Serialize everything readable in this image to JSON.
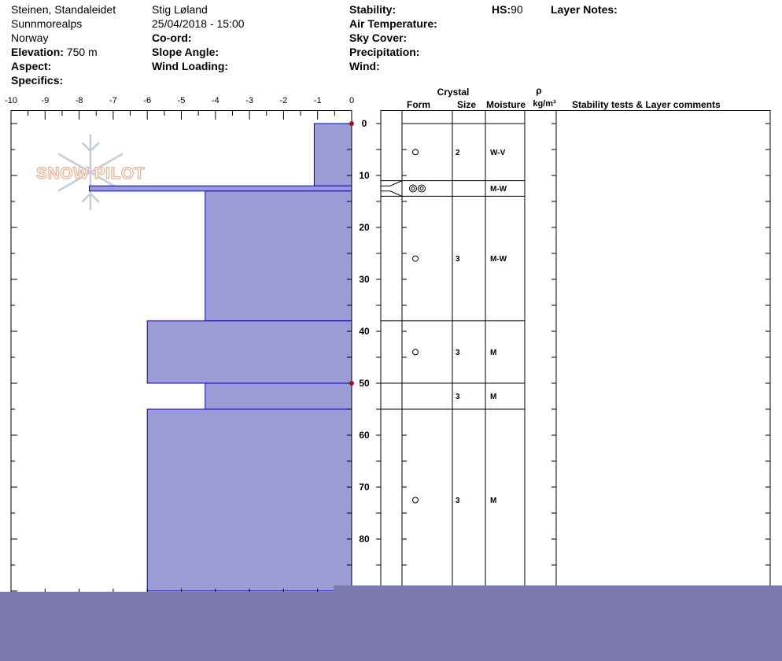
{
  "header": {
    "location": "Steinen, Standaleidet",
    "range": "Sunnmorealps",
    "country": "Norway",
    "elevation_label": "Elevation:",
    "elevation_value": "750 m",
    "aspect_label": "Aspect:",
    "specifics_label": "Specifics:",
    "observer": "Stig Løland",
    "datetime": "25/04/2018 - 15:00",
    "coord_label": "Co-ord:",
    "slope_label": "Slope Angle:",
    "wind_loading_label": "Wind Loading:",
    "stability_label": "Stability:",
    "air_temp_label": "Air Temperature:",
    "sky_cover_label": "Sky Cover:",
    "precip_label": "Precipitation:",
    "wind_label": "Wind:",
    "hs_label": "HS:",
    "hs_value": "90",
    "layer_notes_label": "Layer Notes:"
  },
  "watermark": {
    "text": "SNOW PILOT"
  },
  "columns": {
    "crystal": "Crystal",
    "form": "Form",
    "size": "Size",
    "moisture": "Moisture",
    "rho": "ρ",
    "density_unit": "kg/m³",
    "comments": "Stability tests & Layer comments"
  },
  "colors": {
    "hardness_fill": "#9b9bd6",
    "hardness_edge": "#0000cc",
    "marker": "#aa1111",
    "footer": "#7b79ad"
  },
  "chart_data": {
    "type": "bar",
    "x_axis": {
      "ticks": [
        -10,
        -9,
        -8,
        -7,
        -6,
        -5,
        -4,
        -3,
        -2,
        -1,
        0
      ],
      "range": [
        -10,
        0
      ]
    },
    "y_axis": {
      "ticks": [
        0,
        10,
        20,
        30,
        40,
        50,
        60,
        70,
        80
      ],
      "range": [
        0,
        90
      ],
      "inverted": true
    },
    "hardness_profile": [
      {
        "top": 0,
        "bottom": 12,
        "value": -1.1
      },
      {
        "top": 12,
        "bottom": 13,
        "value": -7.7
      },
      {
        "top": 13,
        "bottom": 38,
        "value": -4.3
      },
      {
        "top": 38,
        "bottom": 50,
        "value": -6.0
      },
      {
        "top": 50,
        "bottom": 55,
        "value": -4.3
      },
      {
        "top": 55,
        "bottom": 90,
        "value": -6.0
      }
    ],
    "markers": [
      0,
      50
    ],
    "layers": [
      {
        "top": 0,
        "bottom": 11,
        "form": "round",
        "size": "2",
        "moisture": "W-V"
      },
      {
        "top": 11,
        "bottom": 14,
        "form": "double-round",
        "size": "",
        "moisture": "M-W"
      },
      {
        "top": 14,
        "bottom": 38,
        "form": "round",
        "size": "3",
        "moisture": "M-W"
      },
      {
        "top": 38,
        "bottom": 50,
        "form": "round",
        "size": "3",
        "moisture": "M"
      },
      {
        "top": 50,
        "bottom": 55,
        "form": "",
        "size": "3",
        "moisture": "M"
      },
      {
        "top": 55,
        "bottom": 90,
        "form": "round",
        "size": "3",
        "moisture": "M"
      }
    ]
  }
}
